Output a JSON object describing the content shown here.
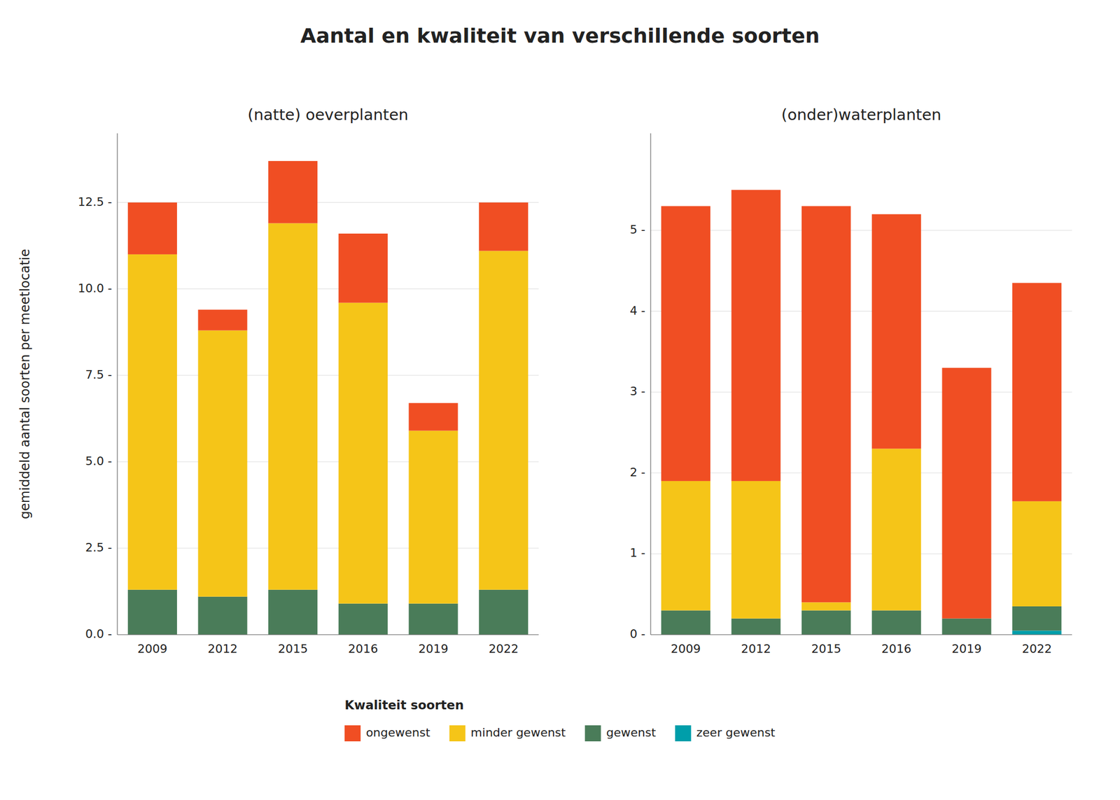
{
  "chart_data": [
    {
      "type": "bar",
      "stacked": true,
      "grid": true,
      "legend": "bottom",
      "title": "Aantal en kwaliteit van verschillende soorten",
      "subtitle": "(natte) oeverplanten",
      "ylabel": "gemiddeld aantal soorten per meetlocatie",
      "legend_title": "Kwaliteit soorten",
      "categories": [
        "2009",
        "2012",
        "2015",
        "2016",
        "2019",
        "2022"
      ],
      "series": [
        {
          "name": "zeer gewenst",
          "color": "#009EAA",
          "values": [
            0.0,
            0.0,
            0.0,
            0.0,
            0.0,
            0.0
          ]
        },
        {
          "name": "gewenst",
          "color": "#4A7C59",
          "values": [
            1.3,
            1.1,
            1.3,
            0.9,
            0.9,
            1.3
          ]
        },
        {
          "name": "minder gewenst",
          "color": "#F5C518",
          "values": [
            9.7,
            7.7,
            10.6,
            8.7,
            5.0,
            9.8
          ]
        },
        {
          "name": "ongewenst",
          "color": "#F04E23",
          "values": [
            1.5,
            0.6,
            1.8,
            2.0,
            0.8,
            1.4
          ]
        }
      ],
      "ylim": [
        0,
        14.5
      ],
      "yticks": [
        {
          "value": 0.0,
          "label": "0.0 -"
        },
        {
          "value": 2.5,
          "label": "2.5 -"
        },
        {
          "value": 5.0,
          "label": "5.0 -"
        },
        {
          "value": 7.5,
          "label": "7.5 -"
        },
        {
          "value": 10.0,
          "label": "10.0 -"
        },
        {
          "value": 12.5,
          "label": "12.5 -"
        }
      ]
    },
    {
      "type": "bar",
      "stacked": true,
      "grid": true,
      "subtitle": "(onder)waterplanten",
      "categories": [
        "2009",
        "2012",
        "2015",
        "2016",
        "2019",
        "2022"
      ],
      "series": [
        {
          "color": "#009EAA",
          "values": [
            0.0,
            0.0,
            0.0,
            0.0,
            0.0,
            0.05
          ]
        },
        {
          "color": "#4A7C59",
          "values": [
            0.3,
            0.2,
            0.3,
            0.3,
            0.2,
            0.3
          ]
        },
        {
          "color": "#F5C518",
          "values": [
            1.6,
            1.7,
            0.1,
            2.0,
            0.0,
            1.3
          ]
        },
        {
          "color": "#F04E23",
          "values": [
            3.4,
            3.6,
            4.9,
            2.9,
            3.1,
            2.7
          ]
        }
      ],
      "ylim": [
        0,
        6.2
      ],
      "yticks": [
        {
          "value": 0,
          "label": "0 -"
        },
        {
          "value": 1,
          "label": "1 -"
        },
        {
          "value": 2,
          "label": "2 -"
        },
        {
          "value": 3,
          "label": "3 -"
        },
        {
          "value": 4,
          "label": "4 -"
        },
        {
          "value": 5,
          "label": "5 -"
        }
      ]
    }
  ]
}
